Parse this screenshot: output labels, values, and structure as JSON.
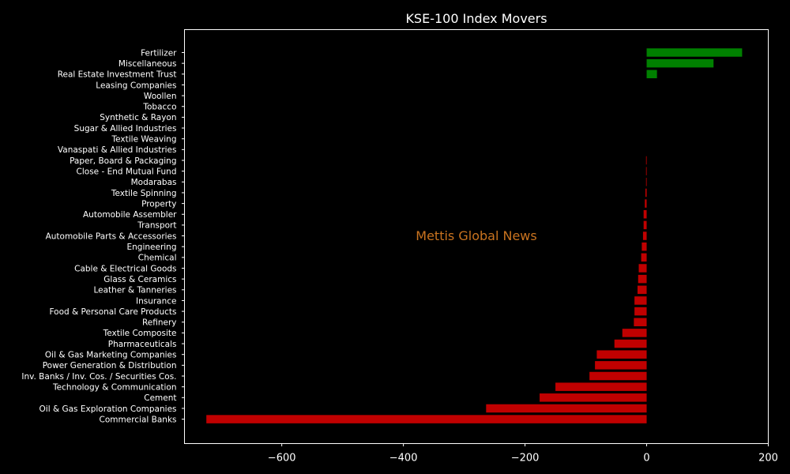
{
  "chart_data": {
    "type": "bar",
    "orientation": "horizontal",
    "title": "KSE-100 Index Movers",
    "xlabel": "",
    "ylabel": "",
    "xlim": [
      -760,
      200
    ],
    "xticks": [
      -600,
      -400,
      -200,
      0,
      200
    ],
    "xtick_labels": [
      "−600",
      "−400",
      "−200",
      "0",
      "200"
    ],
    "grid": false,
    "watermark": "Mettis Global News",
    "colors": {
      "positive": "#008000",
      "negative": "#c00000",
      "background": "#000000",
      "text": "#ffffff",
      "watermark": "#c9731f"
    },
    "categories": [
      "Fertilizer",
      "Miscellaneous",
      "Real Estate Investment Trust",
      "Leasing Companies",
      "Woollen",
      "Tobacco",
      "Synthetic & Rayon",
      "Sugar & Allied Industries",
      "Textile Weaving",
      "Vanaspati & Allied Industries",
      "Paper, Board & Packaging",
      "Close - End Mutual Fund",
      "Modarabas",
      "Textile Spinning",
      "Property",
      "Automobile Assembler",
      "Transport",
      "Automobile Parts & Accessories",
      "Engineering",
      "Chemical",
      "Cable & Electrical Goods",
      "Glass & Ceramics",
      "Leather & Tanneries",
      "Insurance",
      "Food & Personal Care Products",
      "Refinery",
      "Textile Composite",
      "Pharmaceuticals",
      "Oil & Gas Marketing Companies",
      "Power Generation & Distribution",
      "Inv. Banks / Inv. Cos. / Securities Cos.",
      "Technology & Communication",
      "Cement",
      "Oil & Gas Exploration Companies",
      "Commercial Banks"
    ],
    "values": [
      157,
      110,
      17,
      0,
      0,
      0,
      0,
      0,
      0,
      0,
      -1,
      -1,
      -1,
      -2,
      -3,
      -5,
      -5,
      -6,
      -8,
      -9,
      -13,
      -14,
      -15,
      -20,
      -20,
      -21,
      -40,
      -53,
      -82,
      -85,
      -94,
      -150,
      -176,
      -264,
      -724
    ]
  }
}
